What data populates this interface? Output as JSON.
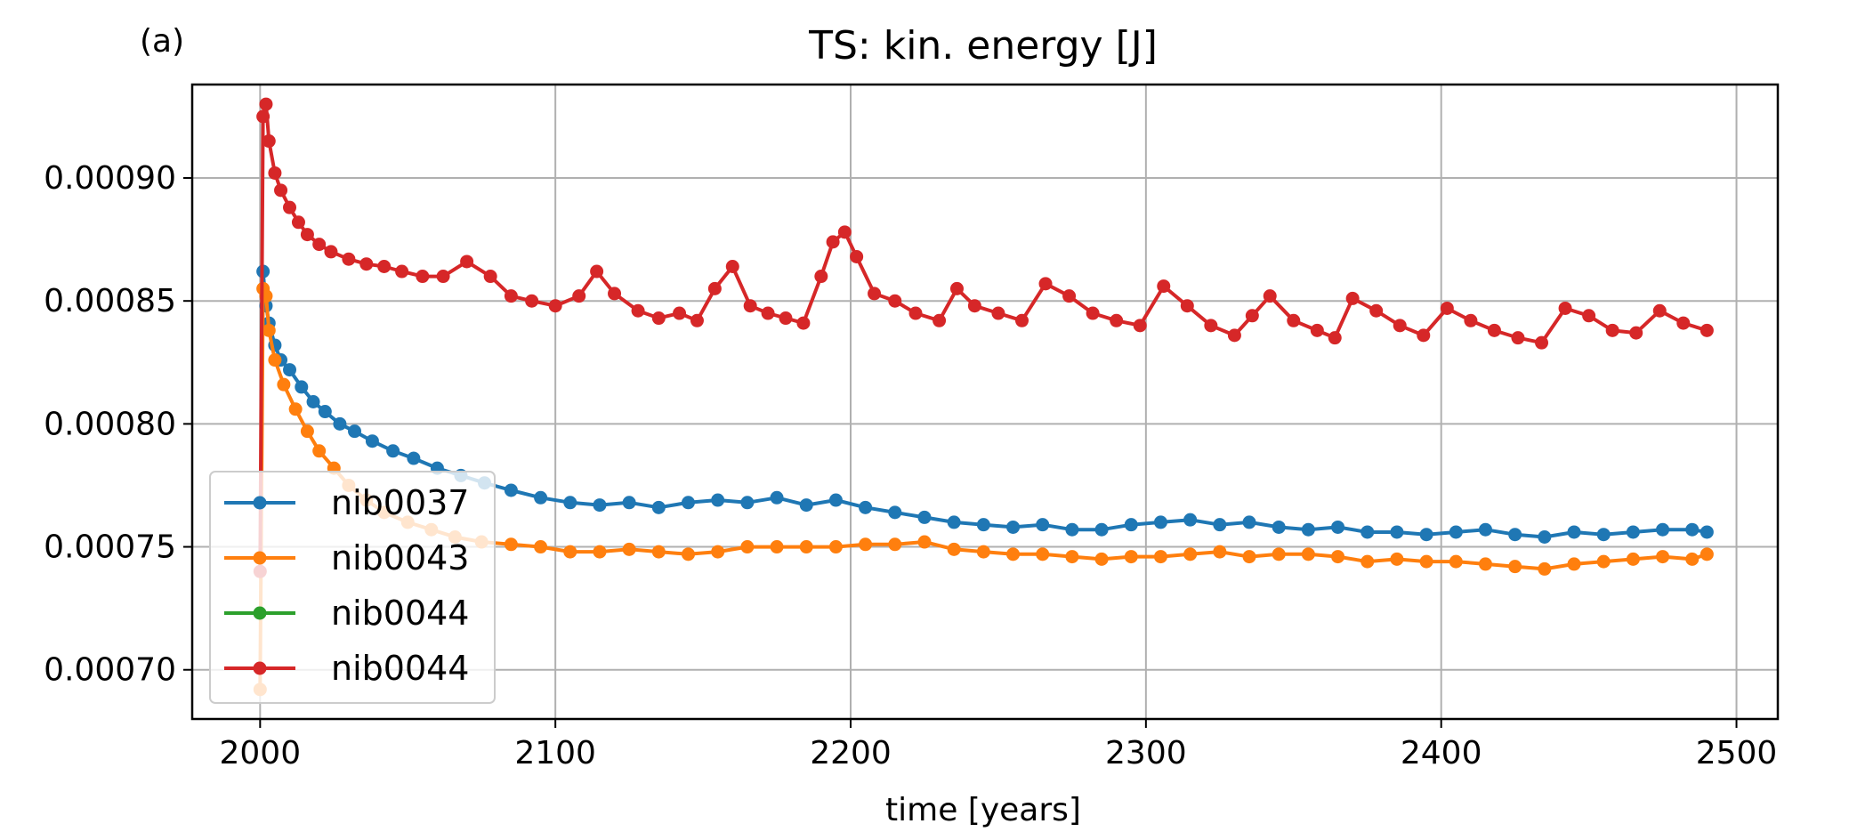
{
  "chart_data": {
    "type": "line",
    "panel_label": "(a)",
    "title": "TS: kin. energy [J]",
    "xlabel": "time [years]",
    "ylabel": "",
    "xlim": [
      1977,
      2514
    ],
    "ylim": [
      0.00068,
      0.000938
    ],
    "xticks": [
      2000,
      2100,
      2200,
      2300,
      2400,
      2500
    ],
    "xtick_labels": [
      "2000",
      "2100",
      "2200",
      "2300",
      "2400",
      "2500"
    ],
    "yticks": [
      0.0007,
      0.00075,
      0.0008,
      0.00085,
      0.0009
    ],
    "ytick_labels": [
      "0.00070",
      "0.00075",
      "0.00080",
      "0.00085",
      "0.00090"
    ],
    "grid": true,
    "legend_position": "lower-left",
    "colors": {
      "nib0037": "#1f77b4",
      "nib0043": "#ff7f0e",
      "nib0044_green": "#2ca02c",
      "nib0044_red": "#d62728"
    },
    "series": [
      {
        "name": "nib0037",
        "color": "#1f77b4",
        "x": [
          2001,
          2002,
          2003,
          2005,
          2007,
          2010,
          2014,
          2018,
          2022,
          2027,
          2032,
          2038,
          2045,
          2052,
          2060,
          2068,
          2076,
          2085,
          2095,
          2105,
          2115,
          2125,
          2135,
          2145,
          2155,
          2165,
          2175,
          2185,
          2195,
          2205,
          2215,
          2225,
          2235,
          2245,
          2255,
          2265,
          2275,
          2285,
          2295,
          2305,
          2315,
          2325,
          2335,
          2345,
          2355,
          2365,
          2375,
          2385,
          2395,
          2405,
          2415,
          2425,
          2435,
          2445,
          2455,
          2465,
          2475,
          2485,
          2490
        ],
        "y": [
          0.000862,
          0.000848,
          0.000841,
          0.000832,
          0.000826,
          0.000822,
          0.000815,
          0.000809,
          0.000805,
          0.0008,
          0.000797,
          0.000793,
          0.000789,
          0.000786,
          0.000782,
          0.000779,
          0.000776,
          0.000773,
          0.00077,
          0.000768,
          0.000767,
          0.000768,
          0.000766,
          0.000768,
          0.000769,
          0.000768,
          0.00077,
          0.000767,
          0.000769,
          0.000766,
          0.000764,
          0.000762,
          0.00076,
          0.000759,
          0.000758,
          0.000759,
          0.000757,
          0.000757,
          0.000759,
          0.00076,
          0.000761,
          0.000759,
          0.00076,
          0.000758,
          0.000757,
          0.000758,
          0.000756,
          0.000756,
          0.000755,
          0.000756,
          0.000757,
          0.000755,
          0.000754,
          0.000756,
          0.000755,
          0.000756,
          0.000757,
          0.000757,
          0.000756
        ]
      },
      {
        "name": "nib0043",
        "color": "#ff7f0e",
        "x": [
          2000,
          2001,
          2002,
          2003,
          2005,
          2008,
          2012,
          2016,
          2020,
          2025,
          2030,
          2036,
          2042,
          2050,
          2058,
          2066,
          2075,
          2085,
          2095,
          2105,
          2115,
          2125,
          2135,
          2145,
          2155,
          2165,
          2175,
          2185,
          2195,
          2205,
          2215,
          2225,
          2235,
          2245,
          2255,
          2265,
          2275,
          2285,
          2295,
          2305,
          2315,
          2325,
          2335,
          2345,
          2355,
          2365,
          2375,
          2385,
          2395,
          2405,
          2415,
          2425,
          2435,
          2445,
          2455,
          2465,
          2475,
          2485,
          2490
        ],
        "y": [
          0.000692,
          0.000855,
          0.000852,
          0.000838,
          0.000826,
          0.000816,
          0.000806,
          0.000797,
          0.000789,
          0.000782,
          0.000775,
          0.000769,
          0.000764,
          0.00076,
          0.000757,
          0.000754,
          0.000752,
          0.000751,
          0.00075,
          0.000748,
          0.000748,
          0.000749,
          0.000748,
          0.000747,
          0.000748,
          0.00075,
          0.00075,
          0.00075,
          0.00075,
          0.000751,
          0.000751,
          0.000752,
          0.000749,
          0.000748,
          0.000747,
          0.000747,
          0.000746,
          0.000745,
          0.000746,
          0.000746,
          0.000747,
          0.000748,
          0.000746,
          0.000747,
          0.000747,
          0.000746,
          0.000744,
          0.000745,
          0.000744,
          0.000744,
          0.000743,
          0.000742,
          0.000741,
          0.000743,
          0.000744,
          0.000745,
          0.000746,
          0.000745,
          0.000747
        ]
      },
      {
        "name": "nib0044",
        "color": "#2ca02c",
        "x": [],
        "y": []
      },
      {
        "name": "nib0044",
        "color": "#d62728",
        "x": [
          2000,
          2001,
          2002,
          2003,
          2005,
          2007,
          2010,
          2013,
          2016,
          2020,
          2024,
          2030,
          2036,
          2042,
          2048,
          2055,
          2062,
          2070,
          2078,
          2085,
          2092,
          2100,
          2108,
          2114,
          2120,
          2128,
          2135,
          2142,
          2148,
          2154,
          2160,
          2166,
          2172,
          2178,
          2184,
          2190,
          2194,
          2198,
          2202,
          2208,
          2215,
          2222,
          2230,
          2236,
          2242,
          2250,
          2258,
          2266,
          2274,
          2282,
          2290,
          2298,
          2306,
          2314,
          2322,
          2330,
          2336,
          2342,
          2350,
          2358,
          2364,
          2370,
          2378,
          2386,
          2394,
          2402,
          2410,
          2418,
          2426,
          2434,
          2442,
          2450,
          2458,
          2466,
          2474,
          2482,
          2490
        ],
        "y": [
          0.00074,
          0.000925,
          0.00093,
          0.000915,
          0.000902,
          0.000895,
          0.000888,
          0.000882,
          0.000877,
          0.000873,
          0.00087,
          0.000867,
          0.000865,
          0.000864,
          0.000862,
          0.00086,
          0.00086,
          0.000866,
          0.00086,
          0.000852,
          0.00085,
          0.000848,
          0.000852,
          0.000862,
          0.000853,
          0.000846,
          0.000843,
          0.000845,
          0.000842,
          0.000855,
          0.000864,
          0.000848,
          0.000845,
          0.000843,
          0.000841,
          0.00086,
          0.000874,
          0.000878,
          0.000868,
          0.000853,
          0.00085,
          0.000845,
          0.000842,
          0.000855,
          0.000848,
          0.000845,
          0.000842,
          0.000857,
          0.000852,
          0.000845,
          0.000842,
          0.00084,
          0.000856,
          0.000848,
          0.00084,
          0.000836,
          0.000844,
          0.000852,
          0.000842,
          0.000838,
          0.000835,
          0.000851,
          0.000846,
          0.00084,
          0.000836,
          0.000847,
          0.000842,
          0.000838,
          0.000835,
          0.000833,
          0.000847,
          0.000844,
          0.000838,
          0.000837,
          0.000846,
          0.000841,
          0.000838
        ]
      }
    ]
  }
}
